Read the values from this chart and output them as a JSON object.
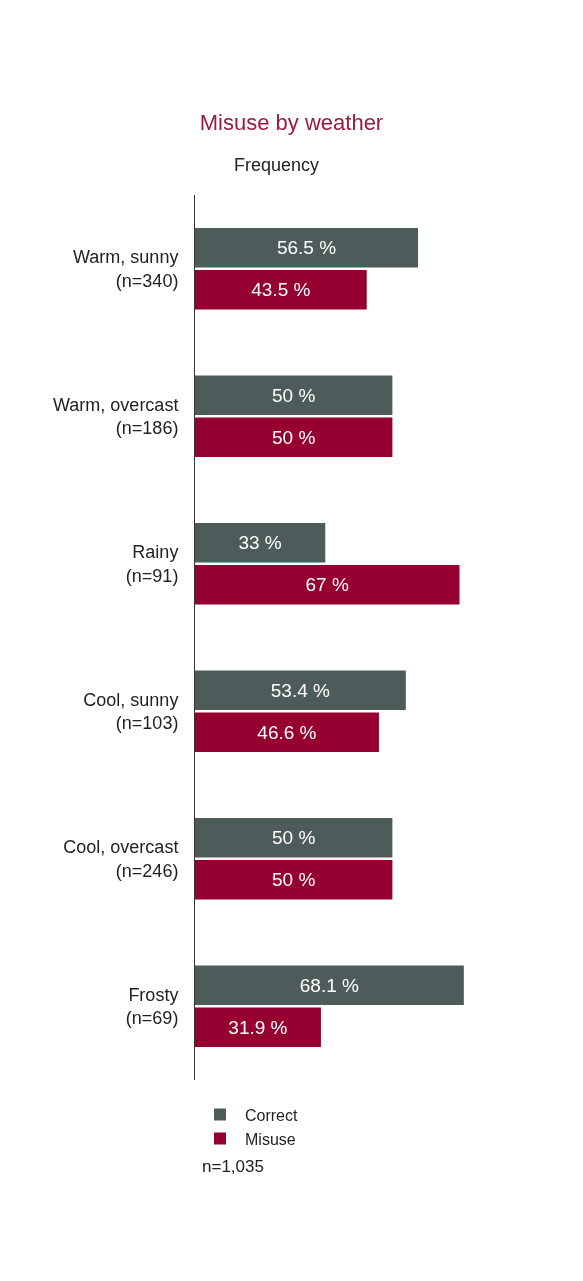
{
  "chart_data": {
    "type": "bar",
    "orientation": "horizontal",
    "title": "Misuse by weather",
    "xlabel": "Frequency",
    "categories": [
      "Warm, sunny\n(n=340)",
      "Warm, overcast\n(n=186)",
      "Rainy\n(n=91)",
      "Cool, sunny\n(n=103)",
      "Cool, overcast\n(n=246)",
      "Frosty\n(n=69)"
    ],
    "series": [
      {
        "name": "Correct",
        "color": "#4d5b5b",
        "values": [
          56.5,
          50,
          33,
          53.4,
          50,
          68.1
        ],
        "value_labels": [
          "56.5 %",
          "50 %",
          "33 %",
          "53.4 %",
          "50 %",
          "68.1 %"
        ]
      },
      {
        "name": "Misuse",
        "color": "#960030",
        "values": [
          43.5,
          50,
          67,
          46.6,
          50,
          31.9
        ],
        "value_labels": [
          "43.5 %",
          "50 %",
          "67 %",
          "46.6 %",
          "50 %",
          "31.9 %"
        ]
      }
    ],
    "tick_labels": "y",
    "legend": "bottom left",
    "annotations": [
      "n=1,035"
    ]
  }
}
